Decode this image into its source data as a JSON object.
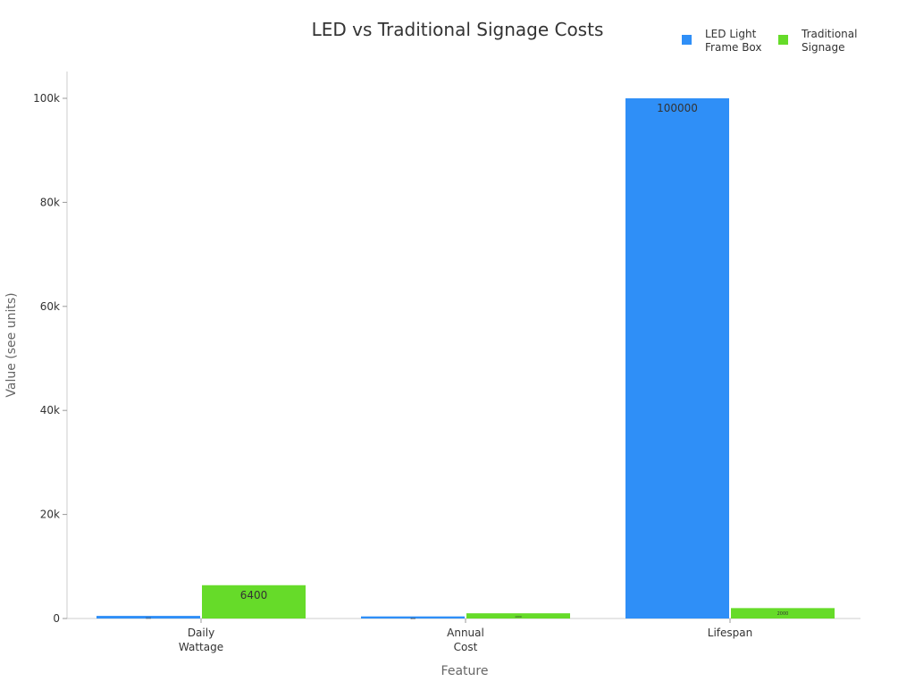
{
  "chart_data": {
    "type": "bar",
    "title": "LED vs Traditional Signage Costs",
    "xlabel": "Feature",
    "ylabel": "Value (see units)",
    "categories": [
      [
        "Daily",
        "Wattage"
      ],
      [
        "Annual",
        "Cost"
      ],
      [
        "Lifespan"
      ]
    ],
    "series": [
      {
        "name": [
          "LED Light",
          "Frame Box"
        ],
        "color": "#2f8ff7",
        "values": [
          500,
          400,
          100000
        ]
      },
      {
        "name": [
          "Traditional",
          "Signage"
        ],
        "color": "#66db29",
        "values": [
          6400,
          1000,
          2000
        ]
      }
    ],
    "ylim": [
      0,
      105000
    ],
    "yticks": [
      0,
      20000,
      40000,
      60000,
      80000,
      100000
    ],
    "ytick_labels": [
      "0",
      "20k",
      "40k",
      "60k",
      "80k",
      "100k"
    ],
    "legend": "top-right",
    "grid": false
  }
}
